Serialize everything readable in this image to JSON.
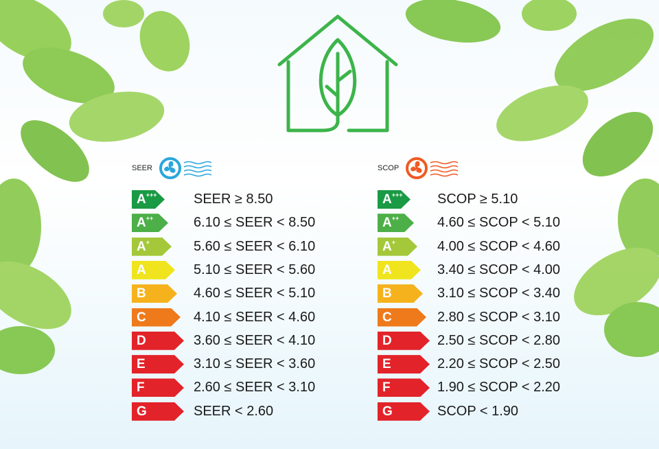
{
  "seer": {
    "title": "SEER",
    "icon": "blue-fan-cool-air-icon",
    "icon_color": "#2aa6dc",
    "rows": [
      {
        "grade": "A",
        "plus": "+++",
        "color": "#1a9a45",
        "range": "SEER ≥ 8.50"
      },
      {
        "grade": "A",
        "plus": "++",
        "color": "#4caf48",
        "range": "6.10 ≤ SEER < 8.50"
      },
      {
        "grade": "A",
        "plus": "+",
        "color": "#a4c83a",
        "range": "5.60 ≤ SEER < 6.10"
      },
      {
        "grade": "A",
        "plus": "",
        "color": "#f0e41e",
        "range": "5.10 ≤ SEER < 5.60"
      },
      {
        "grade": "B",
        "plus": "",
        "color": "#f6b21c",
        "range": "4.60 ≤ SEER < 5.10"
      },
      {
        "grade": "C",
        "plus": "",
        "color": "#ee7a1c",
        "range": "4.10 ≤ SEER < 4.60"
      },
      {
        "grade": "D",
        "plus": "",
        "color": "#e3232a",
        "range": "3.60 ≤ SEER < 4.10"
      },
      {
        "grade": "E",
        "plus": "",
        "color": "#e3232a",
        "range": "3.10 ≤ SEER < 3.60"
      },
      {
        "grade": "F",
        "plus": "",
        "color": "#e3232a",
        "range": "2.60 ≤ SEER < 3.10"
      },
      {
        "grade": "G",
        "plus": "",
        "color": "#e3232a",
        "range": "SEER < 2.60"
      }
    ]
  },
  "scop": {
    "title": "SCOP",
    "icon": "orange-fan-warm-air-icon",
    "icon_color": "#ef5a24",
    "rows": [
      {
        "grade": "A",
        "plus": "+++",
        "color": "#1a9a45",
        "range": "SCOP ≥ 5.10"
      },
      {
        "grade": "A",
        "plus": "++",
        "color": "#4caf48",
        "range": "4.60 ≤ SCOP < 5.10"
      },
      {
        "grade": "A",
        "plus": "+",
        "color": "#a4c83a",
        "range": "4.00 ≤ SCOP < 4.60"
      },
      {
        "grade": "A",
        "plus": "",
        "color": "#f0e41e",
        "range": "3.40 ≤ SCOP < 4.00"
      },
      {
        "grade": "B",
        "plus": "",
        "color": "#f6b21c",
        "range": "3.10 ≤ SCOP < 3.40"
      },
      {
        "grade": "C",
        "plus": "",
        "color": "#ee7a1c",
        "range": "2.80 ≤ SCOP < 3.10"
      },
      {
        "grade": "D",
        "plus": "",
        "color": "#e3232a",
        "range": "2.50 ≤ SCOP < 2.80"
      },
      {
        "grade": "E",
        "plus": "",
        "color": "#e3232a",
        "range": "2.20 ≤ SCOP < 2.50"
      },
      {
        "grade": "F",
        "plus": "",
        "color": "#e3232a",
        "range": "1.90 ≤ SCOP < 2.20"
      },
      {
        "grade": "G",
        "plus": "",
        "color": "#e3232a",
        "range": "SCOP < 1.90"
      }
    ]
  },
  "logo": {
    "icon": "green-house-leaf-icon",
    "color": "#3cb44a"
  }
}
